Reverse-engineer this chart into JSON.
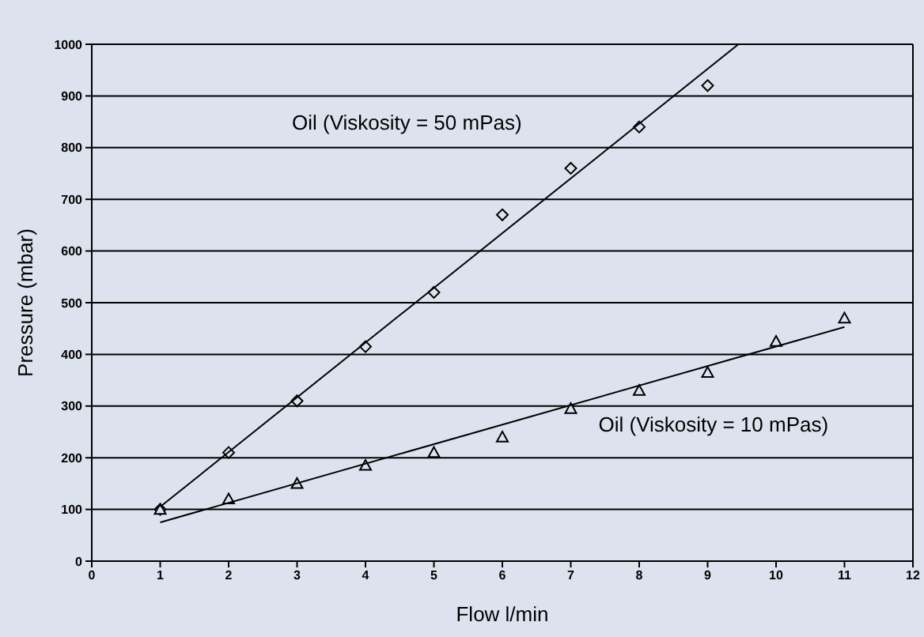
{
  "chart_data": {
    "type": "scatter",
    "xlabel": "Flow l/min",
    "ylabel": "Pressure (mbar)",
    "x": [
      1,
      2,
      3,
      4,
      5,
      6,
      7,
      8,
      9,
      10,
      11
    ],
    "xlim": [
      0,
      12
    ],
    "xticks": [
      0,
      1,
      2,
      3,
      4,
      5,
      6,
      7,
      8,
      9,
      10,
      11,
      12
    ],
    "ylim": [
      0,
      1000
    ],
    "yticks": [
      0,
      100,
      200,
      300,
      400,
      500,
      600,
      700,
      800,
      900,
      1000
    ],
    "grid": "y",
    "legend": false,
    "series": [
      {
        "name": "Oil (Viskosity = 50 mPas)",
        "color": "#000000",
        "marker": "diamond",
        "x": [
          1,
          2,
          3,
          4,
          5,
          6,
          7,
          8,
          9
        ],
        "values": [
          100,
          210,
          310,
          415,
          520,
          670,
          760,
          840,
          920
        ]
      },
      {
        "name": "Oil (Viskosity = 10 mPas)",
        "color": "#000000",
        "marker": "triangle",
        "values": [
          100,
          120,
          150,
          185,
          210,
          240,
          295,
          330,
          365,
          425,
          470
        ]
      },
      {
        "type": "line",
        "color": "#000000",
        "marker": "none",
        "x": [
          1,
          9.45
        ],
        "values": [
          105,
          1000
        ]
      },
      {
        "type": "line",
        "color": "#000000",
        "marker": "none",
        "x": [
          1,
          11
        ],
        "values": [
          75,
          453
        ]
      }
    ]
  }
}
